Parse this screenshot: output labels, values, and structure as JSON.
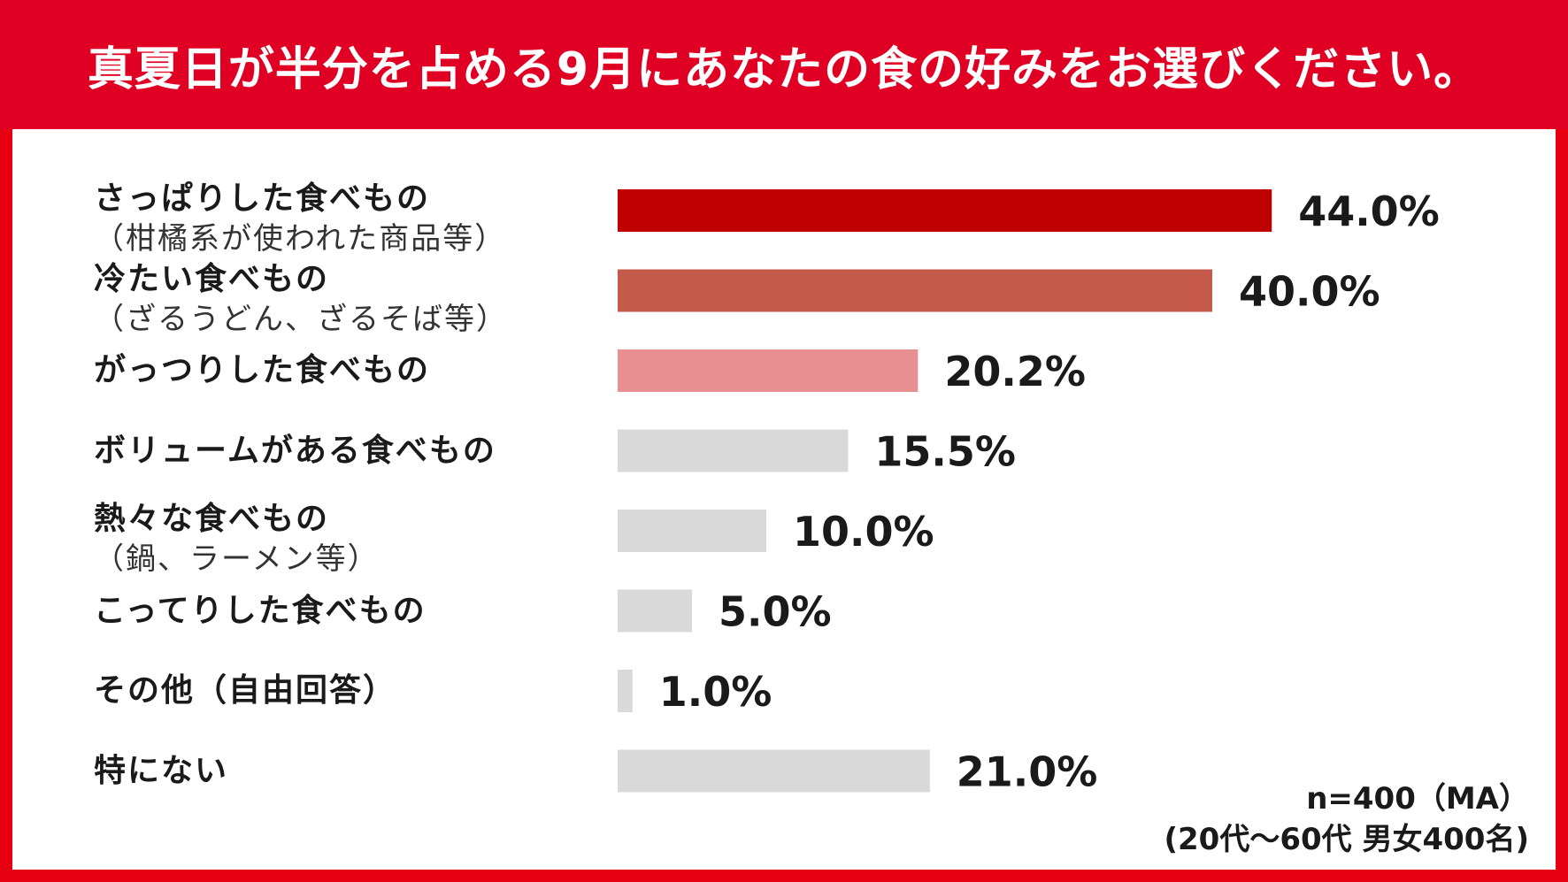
{
  "title": "真夏日が半分を占める9月にあなたの食の好みをお選びください。",
  "chart_data": {
    "type": "bar",
    "orientation": "horizontal",
    "title": "真夏日が半分を占める9月にあなたの食の好みをお選びください。",
    "categories": [
      {
        "label": "さっぱりした食べもの",
        "sub": "（柑橘系が使われた商品等）"
      },
      {
        "label": "冷たい食べもの",
        "sub": "（ざるうどん、ざるそば等）"
      },
      {
        "label": "がっつりした食べもの",
        "sub": ""
      },
      {
        "label": "ボリュームがある食べもの",
        "sub": ""
      },
      {
        "label": "熱々な食べもの",
        "sub": "（鍋、ラーメン等）"
      },
      {
        "label": "こってりした食べもの",
        "sub": ""
      },
      {
        "label": "その他（自由回答）",
        "sub": ""
      },
      {
        "label": "特にない",
        "sub": ""
      }
    ],
    "values": [
      44.0,
      40.0,
      20.2,
      15.5,
      10.0,
      5.0,
      1.0,
      21.0
    ],
    "value_labels": [
      "44.0%",
      "40.0%",
      "20.2%",
      "15.5%",
      "10.0%",
      "5.0%",
      "1.0%",
      "21.0%"
    ],
    "unit": "%",
    "colors": [
      "#c00000",
      "#c55a4b",
      "#e89091",
      "#d9d9d9",
      "#d9d9d9",
      "#d9d9d9",
      "#d9d9d9",
      "#d9d9d9"
    ],
    "xlim": [
      0,
      100
    ],
    "grid": false,
    "legend": "none"
  },
  "note": {
    "line1": "n=400（MA）",
    "line2": "(20代～60代 男女400名)"
  },
  "colors": {
    "header_bg": "#e00023",
    "frame": "#e60012"
  }
}
